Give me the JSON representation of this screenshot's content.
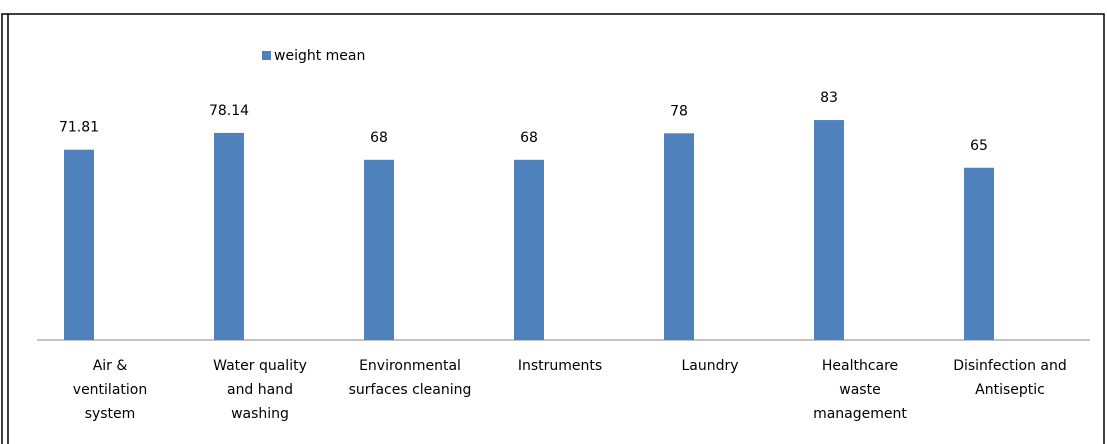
{
  "chart_data": {
    "type": "bar",
    "series": [
      {
        "name": "weight mean",
        "color": "#4f81bd",
        "values": [
          71.81,
          78.14,
          68,
          68,
          78,
          83,
          65
        ]
      }
    ],
    "categories": [
      [
        "Air  &",
        "ventilation",
        "system"
      ],
      [
        "Water quality",
        "and hand",
        "washing"
      ],
      [
        "Environmental",
        "surfaces cleaning"
      ],
      [
        "Instruments"
      ],
      [
        "Laundry"
      ],
      [
        "Healthcare",
        "waste",
        "management"
      ],
      [
        "Disinfection and",
        "Antiseptic"
      ]
    ],
    "ylim": [
      0,
      100
    ]
  }
}
